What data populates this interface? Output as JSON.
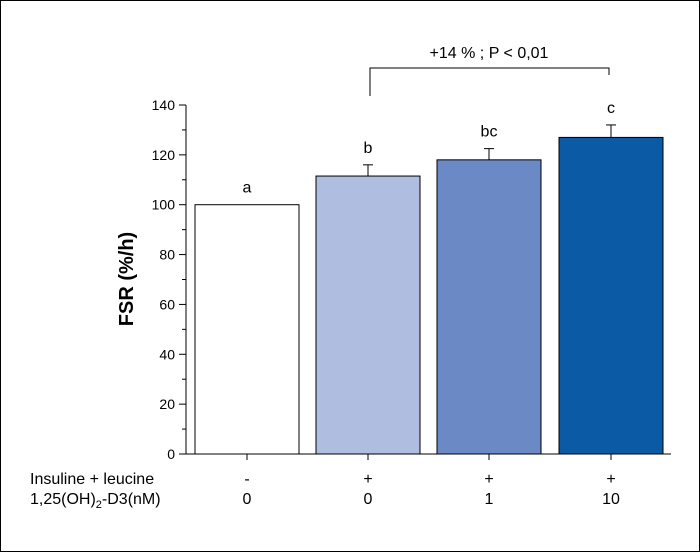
{
  "chart_data": {
    "type": "bar",
    "title": "",
    "xlabel": "",
    "ylabel": "FSR (%/h)",
    "ylim": [
      0,
      140
    ],
    "yticks": [
      0,
      20,
      40,
      60,
      80,
      100,
      120,
      140
    ],
    "grid": false,
    "bars": [
      {
        "value": 100,
        "error": 0,
        "label": "a",
        "color": "#ffffff"
      },
      {
        "value": 111.5,
        "error": 4.5,
        "label": "b",
        "color": "#aebde0"
      },
      {
        "value": 118,
        "error": 4.5,
        "label": "bc",
        "color": "#6a89c5"
      },
      {
        "value": 127,
        "error": 5,
        "label": "c",
        "color": "#0a5aa6"
      }
    ],
    "conditions": [
      {
        "name": "Insuline + leucine",
        "values": [
          "-",
          "+",
          "+",
          "+"
        ]
      },
      {
        "name_prefix": "1,25(OH)",
        "name_sub": "2",
        "name_suffix": "-D3(nM)",
        "values": [
          "0",
          "0",
          "1",
          "10"
        ]
      }
    ],
    "comparison": {
      "from_bar": 1,
      "to_bar": 3,
      "text": "+14 % ; P < 0,01"
    }
  }
}
